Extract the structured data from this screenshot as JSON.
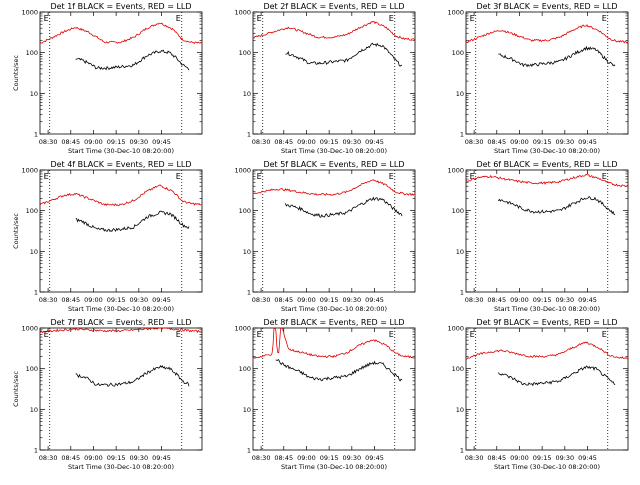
{
  "chart_data": [
    {
      "type": "line",
      "title": "Det 1f BLACK = Events, RED = LLD",
      "xlabel": "Start Time (30-Dec-10 08:20:00)",
      "ylabel": "Counts/sec",
      "yscale": "log",
      "ylim": [
        1,
        1000
      ],
      "y_tick_labels": [
        "1",
        "10",
        "100",
        "1000"
      ],
      "x_tick_labels": [
        "08:30",
        "08:45",
        "09:00",
        "09:15",
        "09:30",
        "09:45"
      ],
      "series": [
        {
          "color": "#e00000",
          "x": [
            0,
            0.07,
            0.15,
            0.22,
            0.3,
            0.4,
            0.5,
            0.58,
            0.66,
            0.74,
            0.82,
            0.88,
            0.93,
            1.0
          ],
          "values": [
            170,
            230,
            330,
            420,
            320,
            180,
            180,
            240,
            400,
            550,
            380,
            210,
            180,
            170
          ]
        },
        {
          "color": "#000000",
          "x": [
            0.22,
            0.26,
            0.3,
            0.35,
            0.42,
            0.5,
            0.58,
            0.66,
            0.74,
            0.8,
            0.84,
            0.88,
            0.92
          ],
          "values": [
            70,
            65,
            55,
            42,
            42,
            45,
            50,
            85,
            110,
            100,
            75,
            50,
            40
          ]
        }
      ],
      "markers": [
        {
          "label": "E",
          "x": 0.06
        },
        {
          "label": "E",
          "x": 0.875
        }
      ]
    },
    {
      "type": "line",
      "title": "Det 2f BLACK = Events, RED = LLD",
      "xlabel": "Start Time (30-Dec-10 08:20:00)",
      "ylabel": "",
      "yscale": "log",
      "ylim": [
        1,
        1000
      ],
      "y_tick_labels": [
        "1",
        "10",
        "100",
        "1000"
      ],
      "x_tick_labels": [
        "08:30",
        "08:45",
        "09:00",
        "09:15",
        "09:30",
        "09:45"
      ],
      "series": [
        {
          "color": "#e00000",
          "x": [
            0,
            0.07,
            0.15,
            0.22,
            0.3,
            0.4,
            0.5,
            0.58,
            0.66,
            0.74,
            0.82,
            0.88,
            0.93,
            1.0
          ],
          "values": [
            230,
            280,
            350,
            420,
            330,
            240,
            240,
            280,
            420,
            580,
            420,
            260,
            220,
            210
          ]
        },
        {
          "color": "#000000",
          "x": [
            0.2,
            0.24,
            0.3,
            0.35,
            0.42,
            0.5,
            0.58,
            0.66,
            0.74,
            0.8,
            0.84,
            0.88,
            0.92
          ],
          "values": [
            100,
            90,
            70,
            55,
            55,
            60,
            65,
            110,
            160,
            150,
            100,
            65,
            45
          ]
        }
      ],
      "markers": [
        {
          "label": "E",
          "x": 0.06
        },
        {
          "label": "E",
          "x": 0.875
        }
      ]
    },
    {
      "type": "line",
      "title": "Det 3f BLACK = Events, RED = LLD",
      "xlabel": "Start Time (30-Dec-10 08:20:00)",
      "ylabel": "",
      "yscale": "log",
      "ylim": [
        1,
        1000
      ],
      "y_tick_labels": [
        "1",
        "10",
        "100",
        "1000"
      ],
      "x_tick_labels": [
        "08:30",
        "08:45",
        "09:00",
        "09:15",
        "09:30",
        "09:45"
      ],
      "series": [
        {
          "color": "#e00000",
          "x": [
            0,
            0.07,
            0.15,
            0.22,
            0.3,
            0.4,
            0.5,
            0.58,
            0.66,
            0.74,
            0.82,
            0.88,
            0.93,
            1.0
          ],
          "values": [
            180,
            230,
            310,
            360,
            280,
            200,
            200,
            240,
            360,
            480,
            350,
            230,
            190,
            180
          ]
        },
        {
          "color": "#000000",
          "x": [
            0.2,
            0.24,
            0.3,
            0.35,
            0.42,
            0.5,
            0.58,
            0.66,
            0.74,
            0.8,
            0.84,
            0.88,
            0.92
          ],
          "values": [
            90,
            80,
            65,
            50,
            50,
            55,
            60,
            90,
            130,
            120,
            85,
            60,
            45
          ]
        }
      ],
      "markers": [
        {
          "label": "E",
          "x": 0.06
        },
        {
          "label": "E",
          "x": 0.875
        }
      ]
    },
    {
      "type": "line",
      "title": "Det 4f BLACK = Events, RED = LLD",
      "xlabel": "Start Time (30-Dec-10 08:20:00)",
      "ylabel": "Counts/sec",
      "yscale": "log",
      "ylim": [
        1,
        1000
      ],
      "y_tick_labels": [
        "1",
        "10",
        "100",
        "1000"
      ],
      "x_tick_labels": [
        "08:30",
        "08:45",
        "09:00",
        "09:15",
        "09:30",
        "09:45"
      ],
      "series": [
        {
          "color": "#e00000",
          "x": [
            0,
            0.07,
            0.15,
            0.22,
            0.3,
            0.4,
            0.5,
            0.58,
            0.66,
            0.74,
            0.82,
            0.88,
            0.93,
            1.0
          ],
          "values": [
            140,
            180,
            240,
            260,
            200,
            140,
            140,
            180,
            300,
            420,
            300,
            170,
            150,
            140
          ]
        },
        {
          "color": "#000000",
          "x": [
            0.22,
            0.26,
            0.3,
            0.35,
            0.42,
            0.5,
            0.58,
            0.66,
            0.74,
            0.8,
            0.84,
            0.88,
            0.92
          ],
          "values": [
            60,
            55,
            45,
            35,
            33,
            35,
            40,
            70,
            90,
            85,
            65,
            45,
            38
          ]
        }
      ],
      "markers": [
        {
          "label": "E",
          "x": 0.06
        },
        {
          "label": "E",
          "x": 0.875
        }
      ]
    },
    {
      "type": "line",
      "title": "Det 5f BLACK = Events, RED = LLD",
      "xlabel": "Start Time (30-Dec-10 08:20:00)",
      "ylabel": "",
      "yscale": "log",
      "ylim": [
        1,
        1000
      ],
      "y_tick_labels": [
        "1",
        "10",
        "100",
        "1000"
      ],
      "x_tick_labels": [
        "08:30",
        "08:45",
        "09:00",
        "09:15",
        "09:30",
        "09:45"
      ],
      "series": [
        {
          "color": "#e00000",
          "x": [
            0,
            0.07,
            0.15,
            0.22,
            0.3,
            0.4,
            0.5,
            0.58,
            0.66,
            0.74,
            0.82,
            0.88,
            0.93,
            1.0
          ],
          "values": [
            260,
            300,
            340,
            320,
            280,
            250,
            250,
            290,
            420,
            580,
            430,
            290,
            260,
            250
          ]
        },
        {
          "color": "#000000",
          "x": [
            0.2,
            0.24,
            0.3,
            0.35,
            0.42,
            0.5,
            0.58,
            0.66,
            0.74,
            0.8,
            0.84,
            0.88,
            0.92
          ],
          "values": [
            140,
            130,
            110,
            85,
            75,
            80,
            90,
            140,
            200,
            190,
            140,
            100,
            80
          ]
        }
      ],
      "markers": [
        {
          "label": "E",
          "x": 0.06
        },
        {
          "label": "E",
          "x": 0.875
        }
      ]
    },
    {
      "type": "line",
      "title": "Det 6f BLACK = Events, RED = LLD",
      "xlabel": "Start Time (30-Dec-10 08:20:00)",
      "ylabel": "",
      "yscale": "log",
      "ylim": [
        1,
        1000
      ],
      "y_tick_labels": [
        "1",
        "10",
        "100",
        "1000"
      ],
      "x_tick_labels": [
        "08:30",
        "08:45",
        "09:00",
        "09:15",
        "09:30",
        "09:45"
      ],
      "series": [
        {
          "color": "#e00000",
          "x": [
            0,
            0.07,
            0.15,
            0.22,
            0.3,
            0.4,
            0.5,
            0.58,
            0.66,
            0.74,
            0.82,
            0.88,
            0.93,
            1.0
          ],
          "values": [
            520,
            650,
            700,
            620,
            540,
            480,
            480,
            520,
            640,
            760,
            620,
            480,
            430,
            400
          ]
        },
        {
          "color": "#000000",
          "x": [
            0.2,
            0.24,
            0.3,
            0.35,
            0.42,
            0.5,
            0.58,
            0.66,
            0.74,
            0.8,
            0.84,
            0.88,
            0.92
          ],
          "values": [
            190,
            170,
            140,
            110,
            95,
            95,
            100,
            150,
            210,
            200,
            150,
            110,
            80
          ]
        }
      ],
      "markers": [
        {
          "label": "E",
          "x": 0.06
        },
        {
          "label": "E",
          "x": 0.875
        }
      ]
    },
    {
      "type": "line",
      "title": "Det 7f BLACK = Events, RED = LLD",
      "xlabel": "Start Time (30-Dec-10 08:20:00)",
      "ylabel": "Counts/sec",
      "yscale": "log",
      "ylim": [
        1,
        1000
      ],
      "y_tick_labels": [
        "1",
        "10",
        "100",
        "1000"
      ],
      "x_tick_labels": [
        "08:30",
        "08:45",
        "09:00",
        "09:15",
        "09:30",
        "09:45"
      ],
      "series": [
        {
          "color": "#e00000",
          "x": [
            0,
            0.07,
            0.15,
            0.22,
            0.3,
            0.4,
            0.5,
            0.58,
            0.66,
            0.74,
            0.82,
            0.88,
            0.93,
            1.0
          ],
          "values": [
            800,
            850,
            900,
            950,
            900,
            850,
            850,
            900,
            950,
            1000,
            950,
            900,
            850,
            820
          ]
        },
        {
          "color": "#000000",
          "x": [
            0.22,
            0.26,
            0.3,
            0.35,
            0.42,
            0.5,
            0.58,
            0.66,
            0.74,
            0.8,
            0.84,
            0.88,
            0.92
          ],
          "values": [
            70,
            65,
            55,
            40,
            40,
            42,
            48,
            80,
            110,
            100,
            75,
            50,
            40
          ]
        }
      ],
      "markers": [
        {
          "label": "E",
          "x": 0.06
        },
        {
          "label": "E",
          "x": 0.875
        }
      ]
    },
    {
      "type": "line",
      "title": "Det 8f BLACK = Events, RED = LLD",
      "xlabel": "Start Time (30-Dec-10 08:20:00)",
      "ylabel": "",
      "yscale": "log",
      "ylim": [
        1,
        1000
      ],
      "y_tick_labels": [
        "1",
        "10",
        "100",
        "1000"
      ],
      "x_tick_labels": [
        "08:30",
        "08:45",
        "09:00",
        "09:15",
        "09:30",
        "09:45"
      ],
      "series": [
        {
          "color": "#e00000",
          "x": [
            0,
            0.05,
            0.12,
            0.13,
            0.14,
            0.15,
            0.16,
            0.17,
            0.18,
            0.22,
            0.3,
            0.4,
            0.5,
            0.58,
            0.66,
            0.74,
            0.82,
            0.88,
            0.93,
            1.0
          ],
          "values": [
            180,
            200,
            230,
            1000,
            1000,
            250,
            240,
            1000,
            1000,
            300,
            250,
            200,
            200,
            250,
            380,
            520,
            380,
            240,
            200,
            190
          ]
        },
        {
          "color": "#000000",
          "x": [
            0.14,
            0.18,
            0.24,
            0.3,
            0.35,
            0.42,
            0.5,
            0.58,
            0.66,
            0.74,
            0.8,
            0.84,
            0.88,
            0.92
          ],
          "values": [
            180,
            130,
            100,
            80,
            60,
            55,
            60,
            65,
            100,
            140,
            130,
            95,
            70,
            50
          ]
        }
      ],
      "markers": [
        {
          "label": "E",
          "x": 0.06
        },
        {
          "label": "E",
          "x": 0.875
        }
      ]
    },
    {
      "type": "line",
      "title": "Det 9f BLACK = Events, RED = LLD",
      "xlabel": "Start Time (30-Dec-10 08:20:00)",
      "ylabel": "",
      "yscale": "log",
      "ylim": [
        1,
        1000
      ],
      "y_tick_labels": [
        "1",
        "10",
        "100",
        "1000"
      ],
      "x_tick_labels": [
        "08:30",
        "08:45",
        "09:00",
        "09:15",
        "09:30",
        "09:45"
      ],
      "series": [
        {
          "color": "#e00000",
          "x": [
            0,
            0.07,
            0.15,
            0.22,
            0.3,
            0.4,
            0.5,
            0.58,
            0.66,
            0.74,
            0.82,
            0.88,
            0.93,
            1.0
          ],
          "values": [
            180,
            220,
            260,
            280,
            240,
            200,
            200,
            230,
            330,
            450,
            330,
            220,
            190,
            180
          ]
        },
        {
          "color": "#000000",
          "x": [
            0.2,
            0.24,
            0.3,
            0.35,
            0.42,
            0.5,
            0.58,
            0.66,
            0.74,
            0.8,
            0.84,
            0.88,
            0.92
          ],
          "values": [
            80,
            70,
            55,
            42,
            42,
            45,
            50,
            75,
            110,
            100,
            75,
            55,
            40
          ]
        }
      ],
      "markers": [
        {
          "label": "E",
          "x": 0.06
        },
        {
          "label": "E",
          "x": 0.875
        }
      ]
    }
  ]
}
